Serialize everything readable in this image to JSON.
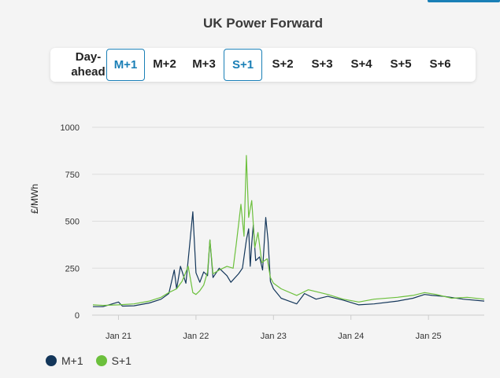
{
  "title": "UK Power Forward",
  "tabs": [
    {
      "label": "Day-ahead",
      "active": false
    },
    {
      "label": "M+1",
      "active": true
    },
    {
      "label": "M+2",
      "active": false
    },
    {
      "label": "M+3",
      "active": false
    },
    {
      "label": "S+1",
      "active": true
    },
    {
      "label": "S+2",
      "active": false
    },
    {
      "label": "S+3",
      "active": false
    },
    {
      "label": "S+4",
      "active": false
    },
    {
      "label": "S+5",
      "active": false
    },
    {
      "label": "S+6",
      "active": false
    }
  ],
  "colors": {
    "accent": "#1a7fb6",
    "m1": "#13365a",
    "s1": "#6cc03c",
    "grid": "#dddddd"
  },
  "chart_data": {
    "type": "line",
    "title": "UK Power Forward",
    "ylabel": "£/MWh",
    "ylim": [
      0,
      1000
    ],
    "yticks": [
      0,
      250,
      500,
      750,
      1000
    ],
    "xlim": [
      2020.66,
      2025.72
    ],
    "xticks": [
      {
        "value": 2021.0,
        "label": "Jan 21"
      },
      {
        "value": 2022.0,
        "label": "Jan 22"
      },
      {
        "value": 2023.0,
        "label": "Jan 23"
      },
      {
        "value": 2024.0,
        "label": "Jan 24"
      },
      {
        "value": 2025.0,
        "label": "Jan 25"
      }
    ],
    "grid": true,
    "legend_position": "bottom-left",
    "series": [
      {
        "name": "M+1",
        "color": "#13365a",
        "points": [
          [
            2020.67,
            45
          ],
          [
            2020.8,
            45
          ],
          [
            2021.0,
            70
          ],
          [
            2021.05,
            48
          ],
          [
            2021.2,
            50
          ],
          [
            2021.4,
            65
          ],
          [
            2021.55,
            85
          ],
          [
            2021.65,
            115
          ],
          [
            2021.72,
            240
          ],
          [
            2021.75,
            140
          ],
          [
            2021.8,
            260
          ],
          [
            2021.87,
            170
          ],
          [
            2021.92,
            380
          ],
          [
            2021.96,
            550
          ],
          [
            2022.0,
            225
          ],
          [
            2022.05,
            175
          ],
          [
            2022.1,
            230
          ],
          [
            2022.15,
            210
          ],
          [
            2022.18,
            400
          ],
          [
            2022.22,
            200
          ],
          [
            2022.3,
            250
          ],
          [
            2022.4,
            210
          ],
          [
            2022.45,
            175
          ],
          [
            2022.55,
            220
          ],
          [
            2022.6,
            250
          ],
          [
            2022.65,
            400
          ],
          [
            2022.68,
            460
          ],
          [
            2022.7,
            260
          ],
          [
            2022.72,
            380
          ],
          [
            2022.74,
            480
          ],
          [
            2022.77,
            290
          ],
          [
            2022.82,
            310
          ],
          [
            2022.86,
            240
          ],
          [
            2022.9,
            520
          ],
          [
            2022.93,
            400
          ],
          [
            2022.96,
            180
          ],
          [
            2023.0,
            140
          ],
          [
            2023.1,
            90
          ],
          [
            2023.3,
            60
          ],
          [
            2023.4,
            115
          ],
          [
            2023.55,
            85
          ],
          [
            2023.7,
            100
          ],
          [
            2023.9,
            80
          ],
          [
            2024.1,
            55
          ],
          [
            2024.3,
            60
          ],
          [
            2024.6,
            75
          ],
          [
            2024.8,
            90
          ],
          [
            2024.95,
            110
          ],
          [
            2025.05,
            105
          ],
          [
            2025.2,
            100
          ],
          [
            2025.45,
            85
          ],
          [
            2025.72,
            75
          ]
        ]
      },
      {
        "name": "S+1",
        "color": "#6cc03c",
        "points": [
          [
            2020.67,
            55
          ],
          [
            2020.8,
            52
          ],
          [
            2021.0,
            55
          ],
          [
            2021.2,
            60
          ],
          [
            2021.4,
            75
          ],
          [
            2021.55,
            95
          ],
          [
            2021.65,
            120
          ],
          [
            2021.75,
            140
          ],
          [
            2021.82,
            180
          ],
          [
            2021.9,
            260
          ],
          [
            2021.96,
            120
          ],
          [
            2022.0,
            110
          ],
          [
            2022.05,
            130
          ],
          [
            2022.1,
            160
          ],
          [
            2022.15,
            230
          ],
          [
            2022.18,
            400
          ],
          [
            2022.22,
            220
          ],
          [
            2022.3,
            240
          ],
          [
            2022.4,
            260
          ],
          [
            2022.48,
            250
          ],
          [
            2022.52,
            380
          ],
          [
            2022.58,
            590
          ],
          [
            2022.62,
            420
          ],
          [
            2022.65,
            850
          ],
          [
            2022.68,
            520
          ],
          [
            2022.72,
            610
          ],
          [
            2022.76,
            360
          ],
          [
            2022.8,
            440
          ],
          [
            2022.85,
            280
          ],
          [
            2022.92,
            300
          ],
          [
            2022.96,
            200
          ],
          [
            2023.0,
            170
          ],
          [
            2023.1,
            140
          ],
          [
            2023.3,
            105
          ],
          [
            2023.45,
            135
          ],
          [
            2023.7,
            110
          ],
          [
            2023.9,
            85
          ],
          [
            2024.1,
            70
          ],
          [
            2024.3,
            85
          ],
          [
            2024.6,
            95
          ],
          [
            2024.8,
            105
          ],
          [
            2024.95,
            120
          ],
          [
            2025.1,
            110
          ],
          [
            2025.3,
            90
          ],
          [
            2025.5,
            95
          ],
          [
            2025.72,
            85
          ]
        ]
      }
    ]
  }
}
